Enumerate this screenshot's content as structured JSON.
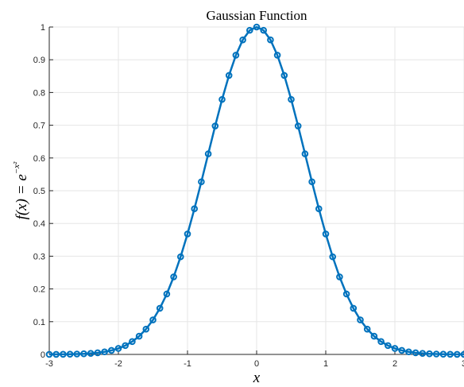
{
  "chart_data": {
    "type": "line",
    "title": "Gaussian Function",
    "xlabel": "x",
    "ylabel": {
      "base": "f(x) = e",
      "exponent": "−x²"
    },
    "xlim": [
      -3,
      3
    ],
    "ylim": [
      0,
      1
    ],
    "xticks": [
      -3,
      -2,
      -1,
      0,
      1,
      2,
      3
    ],
    "xtick_labels": [
      "-3",
      "-2",
      "-1",
      "0",
      "1",
      "2",
      "3"
    ],
    "yticks": [
      0,
      0.1,
      0.2,
      0.3,
      0.4,
      0.5,
      0.6,
      0.7,
      0.8,
      0.9,
      1
    ],
    "ytick_labels": [
      "0",
      "0.1",
      "0.2",
      "0.3",
      "0.4",
      "0.5",
      "0.6",
      "0.7",
      "0.8",
      "0.9",
      "1"
    ],
    "grid": true,
    "marker": "circle",
    "series": [
      {
        "color": "#0072BD",
        "x": [
          -3,
          -2.9,
          -2.8,
          -2.7,
          -2.6,
          -2.5,
          -2.4,
          -2.3,
          -2.2,
          -2.1,
          -2,
          -1.9,
          -1.8,
          -1.7,
          -1.6,
          -1.5,
          -1.4,
          -1.3,
          -1.2,
          -1.1,
          -1,
          -0.9,
          -0.8,
          -0.7,
          -0.6,
          -0.5,
          -0.4,
          -0.3,
          -0.2,
          -0.1,
          0,
          0.1,
          0.2,
          0.3,
          0.4,
          0.5,
          0.6,
          0.7,
          0.8,
          0.9,
          1,
          1.1,
          1.2,
          1.3,
          1.4,
          1.5,
          1.6,
          1.7,
          1.8,
          1.9,
          2,
          2.1,
          2.2,
          2.3,
          2.4,
          2.5,
          2.6,
          2.7,
          2.8,
          2.9,
          3
        ],
        "y": [
          0.0001,
          0.0002,
          0.0004,
          0.0007,
          0.0012,
          0.0019,
          0.0032,
          0.005,
          0.0079,
          0.0122,
          0.0183,
          0.027,
          0.0392,
          0.0556,
          0.0773,
          0.1054,
          0.1409,
          0.1845,
          0.2369,
          0.2982,
          0.3679,
          0.4449,
          0.5273,
          0.6126,
          0.6977,
          0.7788,
          0.8521,
          0.9139,
          0.9608,
          0.99,
          1,
          0.99,
          0.9608,
          0.9139,
          0.8521,
          0.7788,
          0.6977,
          0.6126,
          0.5273,
          0.4449,
          0.3679,
          0.2982,
          0.2369,
          0.1845,
          0.1409,
          0.1054,
          0.0773,
          0.0556,
          0.0392,
          0.027,
          0.0183,
          0.0122,
          0.0079,
          0.005,
          0.0032,
          0.0019,
          0.0012,
          0.0007,
          0.0004,
          0.0002,
          0.0001
        ]
      }
    ]
  }
}
